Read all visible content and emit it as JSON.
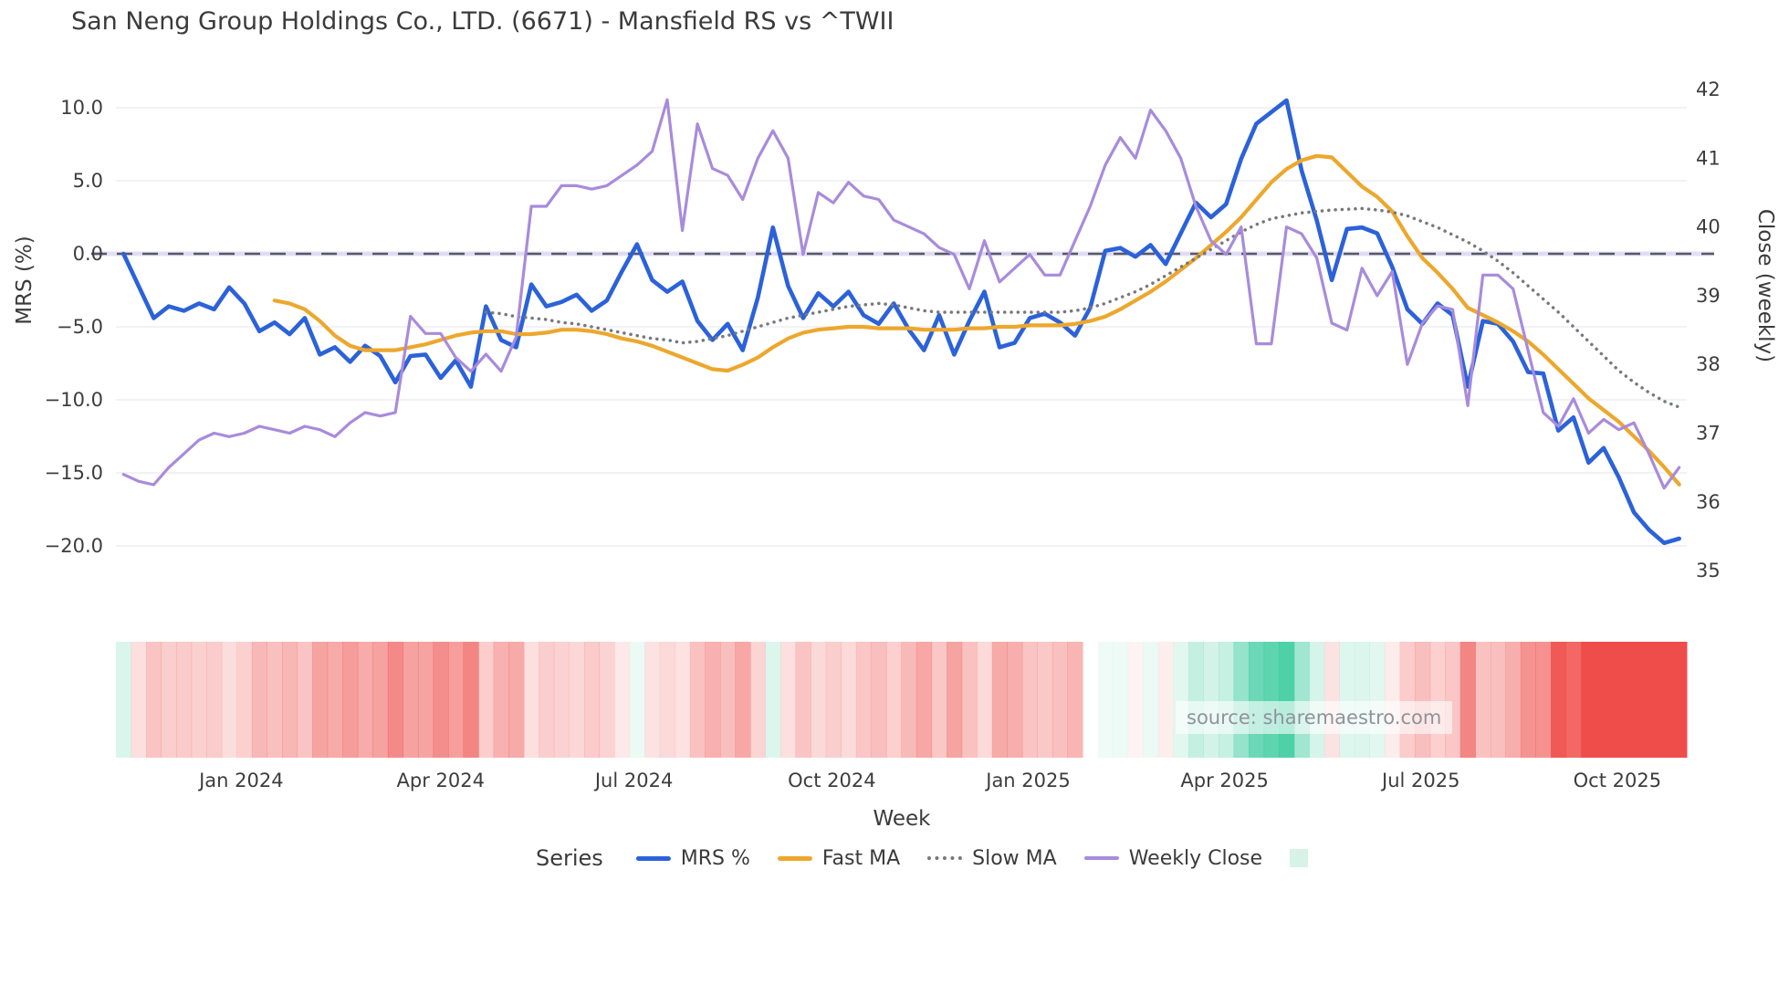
{
  "source_text": "source: sharemaestro.com",
  "chart_data": {
    "type": "line",
    "title": "San Neng Group Holdings Co., LTD. (6671) - Mansfield RS vs ^TWII",
    "xlabel": "Week",
    "grid": true,
    "legend_position": "bottom",
    "weeks": 104,
    "x_tick_labels": [
      {
        "label": "Jan 2024",
        "week": 8.3
      },
      {
        "label": "Apr 2024",
        "week": 21.5
      },
      {
        "label": "Jul 2024",
        "week": 34.3
      },
      {
        "label": "Oct 2024",
        "week": 47.4
      },
      {
        "label": "Jan 2025",
        "week": 60.4
      },
      {
        "label": "Apr 2025",
        "week": 73.4
      },
      {
        "label": "Jul 2025",
        "week": 86.4
      },
      {
        "label": "Oct 2025",
        "week": 99.4
      }
    ],
    "axes": {
      "left": {
        "label": "MRS (%)",
        "ylim": [
          -21.5,
          11.3
        ],
        "ticks": [
          {
            "label": "10.0",
            "value": 10
          },
          {
            "label": "5.0",
            "value": 5
          },
          {
            "label": "0.0",
            "value": 0
          },
          {
            "label": "−5.0",
            "value": -5
          },
          {
            "label": "−10.0",
            "value": -10
          },
          {
            "label": "−15.0",
            "value": -15
          },
          {
            "label": "−20.0",
            "value": -20
          }
        ]
      },
      "right": {
        "label": "Close (weekly)",
        "ylim": [
          34.8,
          42.4
        ],
        "ticks": [
          {
            "label": "42",
            "value": 42
          },
          {
            "label": "41",
            "value": 41
          },
          {
            "label": "40",
            "value": 40
          },
          {
            "label": "39",
            "value": 39
          },
          {
            "label": "38",
            "value": 38
          },
          {
            "label": "37",
            "value": 37
          },
          {
            "label": "36",
            "value": 36
          },
          {
            "label": "35",
            "value": 35
          }
        ]
      }
    },
    "zero_line_mrs": 0.0,
    "series": [
      {
        "name": "MRS %",
        "axis": "left",
        "color": "#2c62d9",
        "style": "solid",
        "width": 4.6,
        "values": [
          0.0,
          -2.2,
          -4.4,
          -3.6,
          -3.9,
          -3.4,
          -3.8,
          -2.3,
          -3.4,
          -5.3,
          -4.7,
          -5.5,
          -4.4,
          -6.9,
          -6.4,
          -7.4,
          -6.3,
          -7.0,
          -8.8,
          -7.0,
          -6.9,
          -8.5,
          -7.3,
          -9.1,
          -3.6,
          -5.9,
          -6.4,
          -2.1,
          -3.6,
          -3.3,
          -2.8,
          -3.9,
          -3.2,
          -1.2,
          0.65,
          -1.8,
          -2.6,
          -1.9,
          -4.6,
          -5.9,
          -4.8,
          -6.6,
          -3.0,
          1.8,
          -2.2,
          -4.4,
          -2.7,
          -3.6,
          -2.6,
          -4.2,
          -4.8,
          -3.4,
          -5.2,
          -6.6,
          -4.2,
          -6.9,
          -4.6,
          -2.6,
          -6.4,
          -6.1,
          -4.4,
          -4.1,
          -4.7,
          -5.6,
          -3.7,
          0.2,
          0.4,
          -0.2,
          0.6,
          -0.7,
          1.4,
          3.5,
          2.5,
          3.4,
          6.5,
          8.9,
          9.7,
          10.5,
          5.7,
          2.3,
          -1.8,
          1.7,
          1.8,
          1.4,
          -0.9,
          -3.8,
          -4.8,
          -3.4,
          -4.2,
          -9.1,
          -4.6,
          -4.8,
          -6.0,
          -8.1,
          -8.2,
          -12.1,
          -11.2,
          -14.3,
          -13.3,
          -15.3,
          -17.7,
          -18.9,
          -19.8,
          -19.5
        ]
      },
      {
        "name": "Fast MA",
        "axis": "left",
        "color": "#eda72d",
        "style": "solid",
        "width": 4.2,
        "values": [
          null,
          null,
          null,
          null,
          null,
          null,
          null,
          null,
          null,
          null,
          -3.2,
          -3.4,
          -3.8,
          -4.6,
          -5.6,
          -6.3,
          -6.6,
          -6.6,
          -6.6,
          -6.4,
          -6.2,
          -5.9,
          -5.6,
          -5.4,
          -5.3,
          -5.3,
          -5.5,
          -5.5,
          -5.4,
          -5.2,
          -5.2,
          -5.3,
          -5.5,
          -5.8,
          -6.0,
          -6.3,
          -6.7,
          -7.1,
          -7.5,
          -7.9,
          -8.0,
          -7.6,
          -7.1,
          -6.4,
          -5.8,
          -5.4,
          -5.2,
          -5.1,
          -5.0,
          -5.0,
          -5.1,
          -5.1,
          -5.1,
          -5.2,
          -5.2,
          -5.2,
          -5.1,
          -5.1,
          -5.0,
          -5.0,
          -4.9,
          -4.9,
          -4.9,
          -4.8,
          -4.6,
          -4.3,
          -3.8,
          -3.2,
          -2.6,
          -1.9,
          -1.1,
          -0.3,
          0.6,
          1.5,
          2.5,
          3.7,
          4.9,
          5.8,
          6.4,
          6.7,
          6.6,
          5.6,
          4.6,
          3.9,
          2.9,
          1.2,
          -0.3,
          -1.3,
          -2.4,
          -3.7,
          -4.2,
          -4.7,
          -5.3,
          -6.0,
          -6.9,
          -7.9,
          -8.9,
          -9.9,
          -10.7,
          -11.5,
          -12.5,
          -13.5,
          -14.6,
          -15.8
        ]
      },
      {
        "name": "Slow MA",
        "axis": "left",
        "color": "#76797e",
        "style": "dotted",
        "width": 3.5,
        "values": [
          null,
          null,
          null,
          null,
          null,
          null,
          null,
          null,
          null,
          null,
          null,
          null,
          null,
          null,
          null,
          null,
          null,
          null,
          null,
          null,
          null,
          null,
          null,
          null,
          -4.0,
          -4.1,
          -4.3,
          -4.4,
          -4.5,
          -4.7,
          -4.8,
          -5.0,
          -5.2,
          -5.4,
          -5.6,
          -5.8,
          -5.9,
          -6.1,
          -6.0,
          -5.8,
          -5.6,
          -5.3,
          -5.0,
          -4.7,
          -4.4,
          -4.2,
          -4.0,
          -3.8,
          -3.6,
          -3.5,
          -3.4,
          -3.5,
          -3.7,
          -3.9,
          -4.0,
          -4.0,
          -4.0,
          -4.0,
          -4.0,
          -4.0,
          -4.0,
          -4.0,
          -4.0,
          -3.9,
          -3.7,
          -3.4,
          -3.0,
          -2.6,
          -2.1,
          -1.5,
          -0.9,
          -0.3,
          0.3,
          0.9,
          1.5,
          2.0,
          2.4,
          2.6,
          2.8,
          2.9,
          3.0,
          3.05,
          3.1,
          3.0,
          2.85,
          2.6,
          2.2,
          1.8,
          1.3,
          0.8,
          0.2,
          -0.5,
          -1.3,
          -2.2,
          -3.1,
          -4.0,
          -5.0,
          -6.0,
          -7.0,
          -8.0,
          -8.8,
          -9.5,
          -10.1,
          -10.5
        ]
      },
      {
        "name": "Weekly Close",
        "axis": "right",
        "color": "#a88bdc",
        "style": "solid",
        "width": 3.2,
        "values": [
          36.4,
          36.3,
          36.25,
          36.5,
          36.7,
          36.9,
          37.0,
          36.95,
          37.0,
          37.1,
          37.05,
          37.0,
          37.1,
          37.05,
          36.95,
          37.15,
          37.3,
          37.25,
          37.3,
          38.7,
          38.45,
          38.45,
          38.1,
          37.9,
          38.15,
          37.9,
          38.4,
          40.3,
          40.3,
          40.6,
          40.6,
          40.55,
          40.6,
          40.75,
          40.9,
          41.1,
          41.85,
          39.95,
          41.5,
          40.85,
          40.75,
          40.4,
          41.0,
          41.4,
          41.0,
          39.6,
          40.5,
          40.35,
          40.65,
          40.45,
          40.4,
          40.1,
          40.0,
          39.9,
          39.7,
          39.6,
          39.1,
          39.8,
          39.2,
          39.4,
          39.6,
          39.3,
          39.3,
          39.8,
          40.3,
          40.9,
          41.3,
          41.0,
          41.7,
          41.4,
          41.0,
          40.3,
          39.8,
          39.6,
          40.0,
          38.3,
          38.3,
          40.0,
          39.9,
          39.55,
          38.6,
          38.5,
          39.4,
          39.0,
          39.35,
          38.0,
          38.6,
          38.85,
          38.8,
          37.4,
          39.3,
          39.3,
          39.1,
          38.2,
          37.3,
          37.1,
          37.5,
          37.0,
          37.2,
          37.05,
          37.15,
          36.7,
          36.2,
          36.5
        ]
      }
    ],
    "heatmap": {
      "description": "weekly heat strip below chart: red = negative MRS, green = positive MRS, darker = stronger, white cell = missing week",
      "red": "#ee4d4a",
      "green": "#22c591",
      "values_from_series": "MRS %",
      "overrides": {
        "0": 2.0,
        "64": null
      }
    },
    "legend": {
      "series_title": "Series",
      "swatch_color": "#d7f2e6"
    }
  }
}
